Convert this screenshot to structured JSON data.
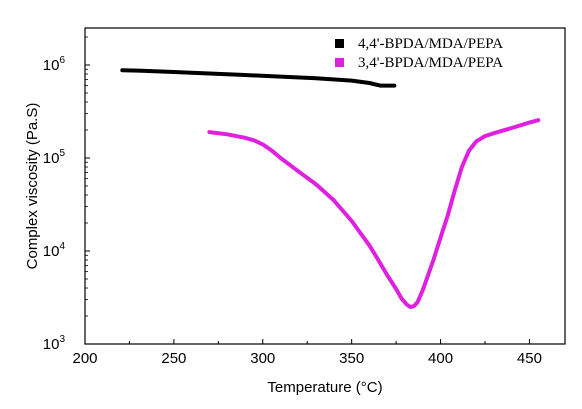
{
  "chart_data": {
    "type": "line",
    "title": "",
    "xlabel": "Temperature (°C)",
    "ylabel": "Complex viscosity (Pa.S)",
    "xlim": [
      200,
      470
    ],
    "ylim": [
      1000,
      2500000
    ],
    "yscale": "log",
    "grid": false,
    "legend_position": "top-right",
    "x_ticks": [
      200,
      250,
      300,
      350,
      400,
      450
    ],
    "x_tick_labels": [
      "200",
      "250",
      "300",
      "350",
      "400",
      "450"
    ],
    "y_ticks": [
      {
        "value": 1000,
        "base": "10",
        "exp": "3"
      },
      {
        "value": 10000,
        "base": "10",
        "exp": "4"
      },
      {
        "value": 100000,
        "base": "10",
        "exp": "5"
      },
      {
        "value": 1000000,
        "base": "10",
        "exp": "6"
      }
    ],
    "series": [
      {
        "name": "4,4'-BPDA/MDA/PEPA",
        "color": "#000000",
        "x": [
          221,
          230,
          250,
          270,
          290,
          310,
          330,
          350,
          360,
          366,
          370,
          374
        ],
        "y": [
          880000,
          870000,
          840000,
          810000,
          780000,
          750000,
          720000,
          680000,
          640000,
          600000,
          600000,
          600000
        ]
      },
      {
        "name": "3,4'-BPDA/MDA/PEPA",
        "color": "#e020e0",
        "x": [
          270,
          280,
          290,
          295,
          300,
          305,
          310,
          320,
          330,
          340,
          350,
          360,
          365,
          370,
          375,
          378,
          381,
          383,
          385,
          387,
          390,
          393,
          396,
          400,
          404,
          408,
          412,
          416,
          420,
          425,
          430,
          440,
          450,
          455
        ],
        "y": [
          190000,
          180000,
          165000,
          155000,
          140000,
          120000,
          100000,
          72000,
          52000,
          35000,
          21000,
          11500,
          8000,
          5500,
          3900,
          3100,
          2650,
          2500,
          2550,
          2800,
          3800,
          5500,
          8000,
          14000,
          24000,
          45000,
          80000,
          120000,
          150000,
          172000,
          185000,
          210000,
          240000,
          255000
        ]
      }
    ]
  }
}
